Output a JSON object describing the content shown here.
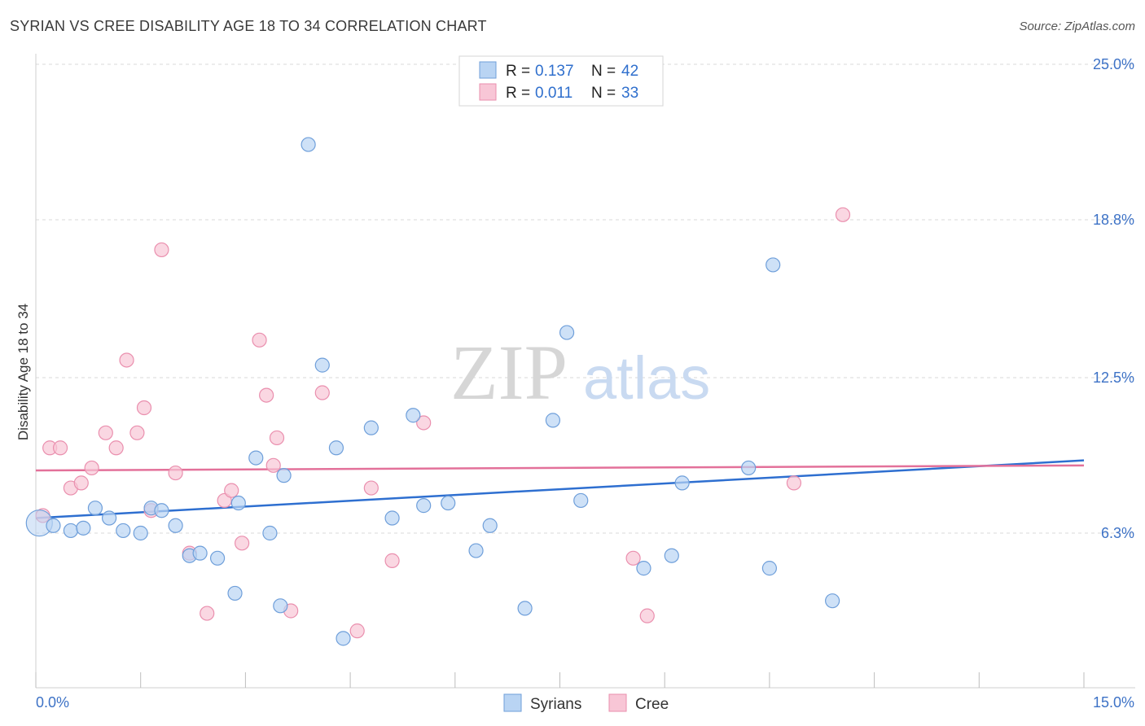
{
  "title": "SYRIAN VS CREE DISABILITY AGE 18 TO 34 CORRELATION CHART",
  "source": "Source: ZipAtlas.com",
  "watermark": {
    "zip": "ZIP",
    "atlas": "atlas"
  },
  "legend_top": {
    "rows": [
      {
        "r_label": "R = ",
        "r_value": "0.137",
        "n_label": "N = ",
        "n_value": "42"
      },
      {
        "r_label": "R = ",
        "r_value": "0.011",
        "n_label": "N = ",
        "n_value": "33"
      }
    ]
  },
  "legend_bottom": {
    "syrians": "Syrians",
    "cree": "Cree"
  },
  "colors": {
    "syrians_fill": "#b9d4f3",
    "syrians_stroke": "#6f9fda",
    "syrians_line": "#2e6fd0",
    "cree_fill": "#f8c6d6",
    "cree_stroke": "#ea8fae",
    "cree_line": "#e3719a",
    "tick_text": "#3d72c6",
    "grid": "#d9d9d9"
  },
  "chart_data": {
    "type": "scatter",
    "title": "SYRIAN VS CREE DISABILITY AGE 18 TO 34 CORRELATION CHART",
    "xlabel": "",
    "ylabel": "Disability Age 18 to 34",
    "xlim": [
      0,
      15
    ],
    "ylim": [
      0,
      25
    ],
    "x_tick_labels": {
      "left": "0.0%",
      "right": "15.0%"
    },
    "y_ticks": [
      {
        "value": 6.3,
        "label": "6.3%"
      },
      {
        "value": 12.5,
        "label": "12.5%"
      },
      {
        "value": 18.8,
        "label": "18.8%"
      },
      {
        "value": 25.0,
        "label": "25.0%"
      }
    ],
    "legend_placement": "top-center",
    "grid": true,
    "series": [
      {
        "name": "Syrians",
        "r": 0.137,
        "n": 42,
        "trend": {
          "x0": 0,
          "y0": 6.9,
          "x1": 15,
          "y1": 9.2
        },
        "points": [
          [
            0.05,
            6.7
          ],
          [
            0.25,
            6.6
          ],
          [
            0.5,
            6.4
          ],
          [
            0.68,
            6.5
          ],
          [
            0.85,
            7.3
          ],
          [
            1.05,
            6.9
          ],
          [
            1.25,
            6.4
          ],
          [
            1.5,
            6.3
          ],
          [
            1.65,
            7.3
          ],
          [
            1.8,
            7.2
          ],
          [
            2.0,
            6.6
          ],
          [
            2.2,
            5.4
          ],
          [
            2.35,
            5.5
          ],
          [
            2.6,
            5.3
          ],
          [
            2.85,
            3.9
          ],
          [
            2.9,
            7.5
          ],
          [
            3.15,
            9.3
          ],
          [
            3.35,
            6.3
          ],
          [
            3.5,
            3.4
          ],
          [
            3.55,
            8.6
          ],
          [
            3.9,
            21.8
          ],
          [
            4.1,
            13.0
          ],
          [
            4.3,
            9.7
          ],
          [
            4.4,
            2.1
          ],
          [
            4.8,
            10.5
          ],
          [
            5.1,
            6.9
          ],
          [
            5.4,
            11.0
          ],
          [
            5.55,
            7.4
          ],
          [
            5.9,
            7.5
          ],
          [
            6.3,
            5.6
          ],
          [
            6.5,
            6.6
          ],
          [
            7.0,
            3.3
          ],
          [
            7.4,
            10.8
          ],
          [
            7.6,
            14.3
          ],
          [
            7.8,
            7.6
          ],
          [
            8.7,
            4.9
          ],
          [
            9.1,
            5.4
          ],
          [
            9.25,
            8.3
          ],
          [
            10.2,
            8.9
          ],
          [
            10.5,
            4.9
          ],
          [
            10.55,
            17.0
          ],
          [
            11.4,
            3.6
          ]
        ]
      },
      {
        "name": "Cree",
        "r": 0.011,
        "n": 33,
        "trend": {
          "x0": 0,
          "y0": 8.8,
          "x1": 15,
          "y1": 9.0
        },
        "points": [
          [
            0.1,
            7.0
          ],
          [
            0.2,
            9.7
          ],
          [
            0.35,
            9.7
          ],
          [
            0.5,
            8.1
          ],
          [
            0.65,
            8.3
          ],
          [
            0.8,
            8.9
          ],
          [
            1.0,
            10.3
          ],
          [
            1.15,
            9.7
          ],
          [
            1.3,
            13.2
          ],
          [
            1.45,
            10.3
          ],
          [
            1.55,
            11.3
          ],
          [
            1.65,
            7.2
          ],
          [
            1.8,
            17.6
          ],
          [
            2.0,
            8.7
          ],
          [
            2.2,
            5.5
          ],
          [
            2.45,
            3.1
          ],
          [
            2.7,
            7.6
          ],
          [
            2.8,
            8.0
          ],
          [
            2.95,
            5.9
          ],
          [
            3.2,
            14.0
          ],
          [
            3.3,
            11.8
          ],
          [
            3.4,
            9.0
          ],
          [
            3.45,
            10.1
          ],
          [
            3.65,
            3.2
          ],
          [
            4.1,
            11.9
          ],
          [
            4.6,
            2.4
          ],
          [
            4.8,
            8.1
          ],
          [
            5.1,
            5.2
          ],
          [
            5.55,
            10.7
          ],
          [
            8.55,
            5.3
          ],
          [
            8.75,
            3.0
          ],
          [
            10.85,
            8.3
          ],
          [
            11.55,
            19.0
          ]
        ]
      }
    ]
  }
}
